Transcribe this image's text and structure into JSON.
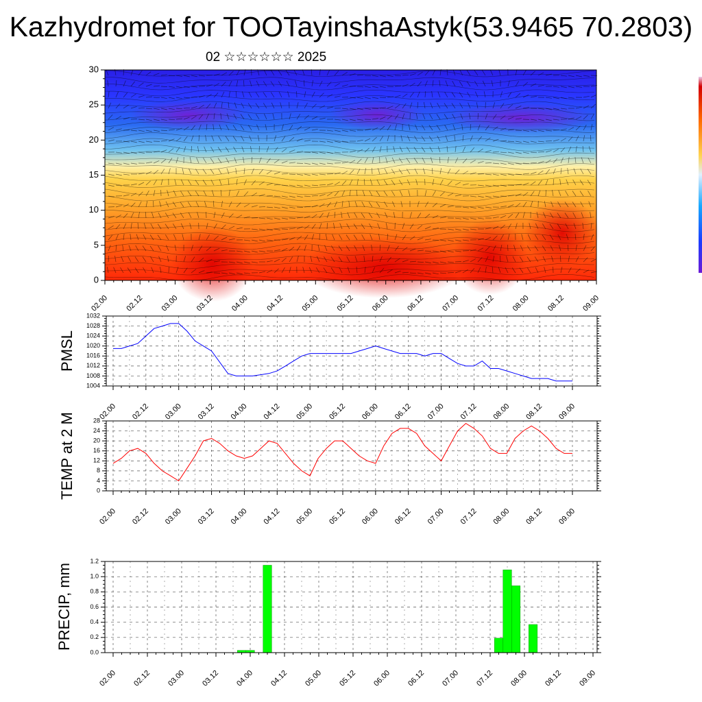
{
  "title": "Kazhydromet for TOOTayinshaAstyk(53.9465 70.2803)",
  "subtitle": "02 ☆☆☆☆☆☆ 2025",
  "time_labels": [
    "02.00",
    "02.12",
    "03.00",
    "03.12",
    "04.00",
    "04.12",
    "05.00",
    "05.12",
    "06.00",
    "06.12",
    "07.00",
    "07.12",
    "08.00",
    "08.12",
    "09.00"
  ],
  "colors": {
    "pmsl_line": "#0000ff",
    "temp_line": "#ff0000",
    "precip_bar": "#00ff00",
    "precip_bar_edge": "#009900"
  },
  "chart_data": [
    {
      "type": "heatmap",
      "title": "",
      "xlabel": "",
      "ylabel": "",
      "ylim": [
        0,
        30
      ],
      "yticks": [
        0,
        5,
        10,
        15,
        20,
        25,
        30
      ],
      "x_range": [
        0,
        168
      ],
      "overlay": "wind barbs and streamlines",
      "colormap": "temperature (red low altitude, yellow mid, light blue transition, blue/violet aloft)"
    },
    {
      "type": "line",
      "title": "",
      "ylabel": "PMSL",
      "xlabel": "",
      "ylim": [
        1004,
        1032
      ],
      "yticks": [
        1004,
        1008,
        1012,
        1016,
        1020,
        1024,
        1028,
        1032
      ],
      "x_range": [
        0,
        168
      ],
      "grid": true,
      "series": [
        {
          "x": [
            0,
            3,
            9,
            12,
            15,
            18,
            21,
            24,
            27,
            30,
            36,
            42,
            45,
            48,
            51,
            57,
            60,
            63,
            66,
            69,
            72,
            75,
            78,
            81,
            84,
            87,
            90,
            93,
            96,
            99,
            102,
            105,
            108,
            111,
            114,
            117,
            120,
            123,
            126,
            129,
            132,
            135,
            138,
            141,
            144,
            147,
            150,
            153,
            156,
            159,
            162,
            165,
            168
          ],
          "values": [
            1019,
            1019,
            1021,
            1024,
            1027,
            1028,
            1029,
            1029,
            1026,
            1022,
            1018,
            1009,
            1008,
            1008,
            1008,
            1009,
            1010,
            1012,
            1014,
            1016,
            1017,
            1017,
            1017,
            1017,
            1017,
            1017,
            1018,
            1019,
            1020,
            1019,
            1018,
            1017,
            1017,
            1017,
            1016,
            1017,
            1017,
            1015,
            1013,
            1012,
            1012,
            1014,
            1011,
            1011,
            1010,
            1009,
            1008,
            1007,
            1007,
            1007,
            1006,
            1006,
            1006
          ]
        }
      ]
    },
    {
      "type": "line",
      "title": "",
      "ylabel": "TEMP at 2 M",
      "xlabel": "",
      "ylim": [
        0,
        28
      ],
      "yticks": [
        0,
        4,
        8,
        12,
        16,
        20,
        24,
        28
      ],
      "x_range": [
        0,
        168
      ],
      "grid": true,
      "series": [
        {
          "x": [
            0,
            3,
            6,
            9,
            12,
            15,
            18,
            21,
            24,
            27,
            30,
            33,
            36,
            39,
            42,
            45,
            48,
            51,
            54,
            57,
            60,
            63,
            66,
            69,
            72,
            75,
            78,
            81,
            84,
            87,
            90,
            93,
            96,
            99,
            102,
            105,
            108,
            111,
            114,
            117,
            120,
            123,
            126,
            129,
            132,
            135,
            138,
            141,
            144,
            147,
            150,
            153,
            156,
            159,
            162,
            165,
            168
          ],
          "values": [
            11,
            13,
            16,
            17,
            15,
            11,
            8,
            6,
            4,
            9,
            14,
            20,
            21,
            19,
            16,
            14,
            13,
            14,
            17,
            20,
            19,
            15,
            11,
            8,
            6,
            13,
            17,
            20,
            20,
            17,
            14,
            12,
            11,
            18,
            23,
            25,
            25,
            23,
            18,
            15,
            12,
            18,
            24,
            27,
            25,
            22,
            17,
            15,
            15,
            21,
            24,
            26,
            24,
            21,
            17,
            15,
            15
          ]
        }
      ]
    },
    {
      "type": "bar",
      "title": "",
      "ylabel": "PRECIP, mm",
      "xlabel": "",
      "ylim": [
        0,
        1.2
      ],
      "yticks": [
        "0.0",
        "0.2",
        "0.4",
        "0.6",
        "0.8",
        "1.0",
        "1.2"
      ],
      "x_range": [
        0,
        168
      ],
      "grid": true,
      "bar_width_hours": 3,
      "x": [
        45,
        48,
        54,
        135,
        138,
        141,
        147
      ],
      "values": [
        0.03,
        0.03,
        1.15,
        0.19,
        1.09,
        0.88,
        0.37
      ]
    }
  ]
}
